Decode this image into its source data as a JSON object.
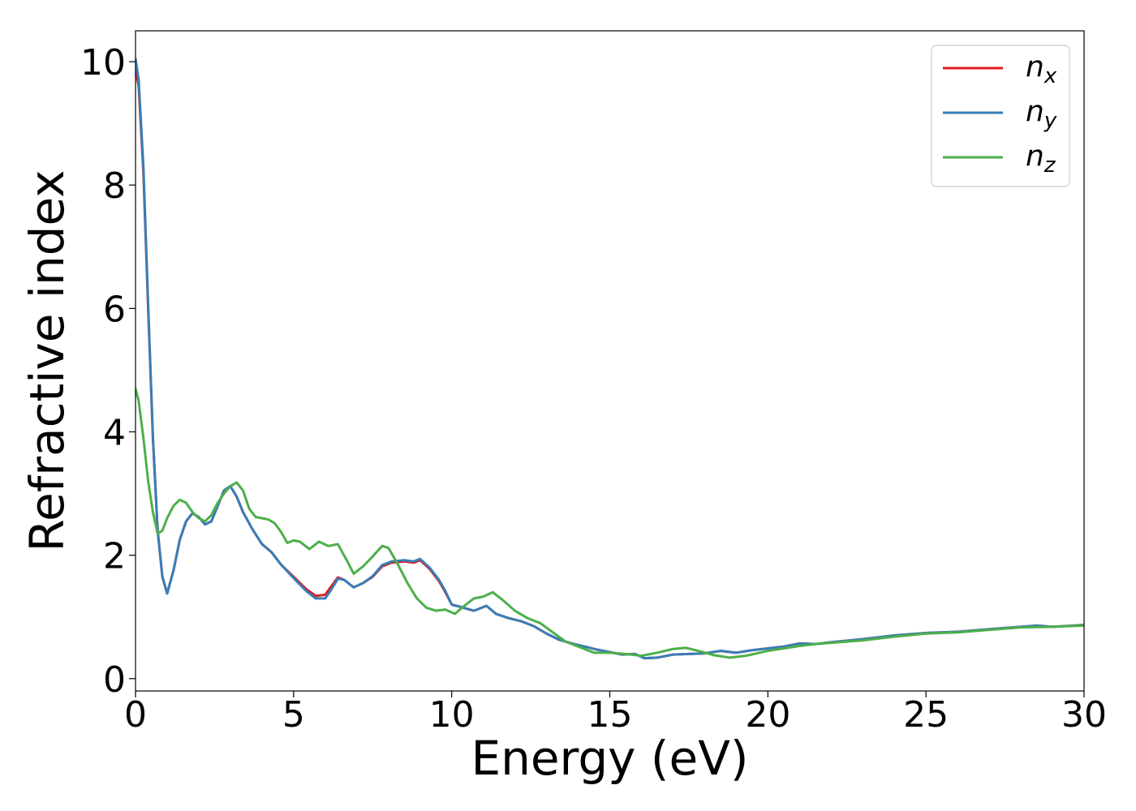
{
  "chart_data": {
    "type": "line",
    "title": "",
    "xlabel": "Energy (eV)",
    "ylabel": "Refractive index",
    "xlim": [
      0,
      30
    ],
    "ylim": [
      -0.2,
      10.5
    ],
    "x_ticks": [
      "0",
      "5",
      "10",
      "15",
      "20",
      "25",
      "30"
    ],
    "y_ticks": [
      "0",
      "2",
      "4",
      "6",
      "8",
      "10"
    ],
    "grid": false,
    "legend_position": "top-right",
    "series": [
      {
        "name": "n",
        "subscript": "x",
        "color": "#e41a1c",
        "points": [
          [
            0,
            9.9
          ],
          [
            0.1,
            9.6
          ],
          [
            0.25,
            8.2
          ],
          [
            0.4,
            6.0
          ],
          [
            0.55,
            3.9
          ],
          [
            0.7,
            2.4
          ],
          [
            0.85,
            1.65
          ],
          [
            1.0,
            1.38
          ],
          [
            1.2,
            1.75
          ],
          [
            1.4,
            2.25
          ],
          [
            1.6,
            2.55
          ],
          [
            1.8,
            2.68
          ],
          [
            2.0,
            2.62
          ],
          [
            2.2,
            2.5
          ],
          [
            2.4,
            2.55
          ],
          [
            2.6,
            2.8
          ],
          [
            2.8,
            3.05
          ],
          [
            3.0,
            3.12
          ],
          [
            3.2,
            2.95
          ],
          [
            3.4,
            2.7
          ],
          [
            3.7,
            2.42
          ],
          [
            4.0,
            2.18
          ],
          [
            4.3,
            2.05
          ],
          [
            4.6,
            1.85
          ],
          [
            5.0,
            1.65
          ],
          [
            5.4,
            1.45
          ],
          [
            5.7,
            1.34
          ],
          [
            6.0,
            1.36
          ],
          [
            6.2,
            1.5
          ],
          [
            6.4,
            1.64
          ],
          [
            6.6,
            1.6
          ],
          [
            6.9,
            1.48
          ],
          [
            7.2,
            1.55
          ],
          [
            7.5,
            1.65
          ],
          [
            7.8,
            1.82
          ],
          [
            8.1,
            1.88
          ],
          [
            8.5,
            1.9
          ],
          [
            8.8,
            1.88
          ],
          [
            9.0,
            1.92
          ],
          [
            9.3,
            1.78
          ],
          [
            9.6,
            1.58
          ],
          [
            9.8,
            1.4
          ],
          [
            10.0,
            1.2
          ],
          [
            10.3,
            1.16
          ],
          [
            10.7,
            1.1
          ],
          [
            11.1,
            1.18
          ],
          [
            11.4,
            1.05
          ],
          [
            11.8,
            0.98
          ],
          [
            12.2,
            0.93
          ],
          [
            12.6,
            0.85
          ],
          [
            13.0,
            0.73
          ],
          [
            13.4,
            0.63
          ],
          [
            13.8,
            0.57
          ],
          [
            14.2,
            0.52
          ],
          [
            14.6,
            0.47
          ],
          [
            15.0,
            0.43
          ],
          [
            15.4,
            0.39
          ],
          [
            15.8,
            0.4
          ],
          [
            16.1,
            0.33
          ],
          [
            16.5,
            0.34
          ],
          [
            17.0,
            0.39
          ],
          [
            17.5,
            0.4
          ],
          [
            18.0,
            0.41
          ],
          [
            18.5,
            0.45
          ],
          [
            19.0,
            0.42
          ],
          [
            19.5,
            0.46
          ],
          [
            20.0,
            0.49
          ],
          [
            20.5,
            0.52
          ],
          [
            21.0,
            0.57
          ],
          [
            21.5,
            0.56
          ],
          [
            22.0,
            0.59
          ],
          [
            23.0,
            0.64
          ],
          [
            24.0,
            0.7
          ],
          [
            25.0,
            0.74
          ],
          [
            26.0,
            0.76
          ],
          [
            27.0,
            0.8
          ],
          [
            28.0,
            0.84
          ],
          [
            28.5,
            0.86
          ],
          [
            29.0,
            0.84
          ],
          [
            30.0,
            0.87
          ]
        ]
      },
      {
        "name": "n",
        "subscript": "y",
        "color": "#377eb8",
        "points": [
          [
            0,
            10.05
          ],
          [
            0.1,
            9.7
          ],
          [
            0.25,
            8.3
          ],
          [
            0.4,
            6.05
          ],
          [
            0.55,
            3.92
          ],
          [
            0.7,
            2.4
          ],
          [
            0.85,
            1.65
          ],
          [
            1.0,
            1.38
          ],
          [
            1.2,
            1.75
          ],
          [
            1.4,
            2.25
          ],
          [
            1.6,
            2.55
          ],
          [
            1.8,
            2.68
          ],
          [
            2.0,
            2.62
          ],
          [
            2.2,
            2.5
          ],
          [
            2.4,
            2.55
          ],
          [
            2.6,
            2.8
          ],
          [
            2.8,
            3.05
          ],
          [
            3.0,
            3.12
          ],
          [
            3.2,
            2.95
          ],
          [
            3.4,
            2.7
          ],
          [
            3.7,
            2.42
          ],
          [
            4.0,
            2.18
          ],
          [
            4.3,
            2.05
          ],
          [
            4.6,
            1.85
          ],
          [
            5.0,
            1.63
          ],
          [
            5.4,
            1.42
          ],
          [
            5.7,
            1.3
          ],
          [
            6.0,
            1.3
          ],
          [
            6.2,
            1.45
          ],
          [
            6.4,
            1.62
          ],
          [
            6.6,
            1.6
          ],
          [
            6.9,
            1.48
          ],
          [
            7.2,
            1.55
          ],
          [
            7.5,
            1.66
          ],
          [
            7.8,
            1.84
          ],
          [
            8.1,
            1.9
          ],
          [
            8.5,
            1.92
          ],
          [
            8.8,
            1.9
          ],
          [
            9.0,
            1.94
          ],
          [
            9.3,
            1.8
          ],
          [
            9.6,
            1.6
          ],
          [
            9.8,
            1.42
          ],
          [
            10.0,
            1.2
          ],
          [
            10.3,
            1.16
          ],
          [
            10.7,
            1.1
          ],
          [
            11.1,
            1.18
          ],
          [
            11.4,
            1.05
          ],
          [
            11.8,
            0.98
          ],
          [
            12.2,
            0.93
          ],
          [
            12.6,
            0.85
          ],
          [
            13.0,
            0.73
          ],
          [
            13.4,
            0.63
          ],
          [
            13.8,
            0.57
          ],
          [
            14.2,
            0.52
          ],
          [
            14.6,
            0.47
          ],
          [
            15.0,
            0.43
          ],
          [
            15.4,
            0.39
          ],
          [
            15.8,
            0.4
          ],
          [
            16.1,
            0.33
          ],
          [
            16.5,
            0.34
          ],
          [
            17.0,
            0.39
          ],
          [
            17.5,
            0.4
          ],
          [
            18.0,
            0.41
          ],
          [
            18.5,
            0.45
          ],
          [
            19.0,
            0.42
          ],
          [
            19.5,
            0.46
          ],
          [
            20.0,
            0.49
          ],
          [
            20.5,
            0.52
          ],
          [
            21.0,
            0.57
          ],
          [
            21.5,
            0.56
          ],
          [
            22.0,
            0.59
          ],
          [
            23.0,
            0.64
          ],
          [
            24.0,
            0.7
          ],
          [
            25.0,
            0.74
          ],
          [
            26.0,
            0.76
          ],
          [
            27.0,
            0.8
          ],
          [
            28.0,
            0.84
          ],
          [
            28.5,
            0.86
          ],
          [
            29.0,
            0.84
          ],
          [
            30.0,
            0.87
          ]
        ]
      },
      {
        "name": "n",
        "subscript": "z",
        "color": "#4daf4a",
        "points": [
          [
            0,
            4.7
          ],
          [
            0.1,
            4.5
          ],
          [
            0.25,
            3.9
          ],
          [
            0.4,
            3.2
          ],
          [
            0.55,
            2.7
          ],
          [
            0.7,
            2.35
          ],
          [
            0.85,
            2.4
          ],
          [
            1.0,
            2.6
          ],
          [
            1.2,
            2.8
          ],
          [
            1.4,
            2.9
          ],
          [
            1.6,
            2.85
          ],
          [
            1.8,
            2.7
          ],
          [
            2.0,
            2.6
          ],
          [
            2.2,
            2.55
          ],
          [
            2.4,
            2.65
          ],
          [
            2.6,
            2.85
          ],
          [
            2.8,
            3.0
          ],
          [
            3.0,
            3.12
          ],
          [
            3.2,
            3.18
          ],
          [
            3.4,
            3.05
          ],
          [
            3.6,
            2.75
          ],
          [
            3.8,
            2.62
          ],
          [
            4.0,
            2.6
          ],
          [
            4.2,
            2.58
          ],
          [
            4.4,
            2.52
          ],
          [
            4.6,
            2.38
          ],
          [
            4.8,
            2.2
          ],
          [
            5.0,
            2.24
          ],
          [
            5.2,
            2.22
          ],
          [
            5.5,
            2.1
          ],
          [
            5.8,
            2.22
          ],
          [
            6.1,
            2.15
          ],
          [
            6.4,
            2.18
          ],
          [
            6.7,
            1.9
          ],
          [
            6.9,
            1.7
          ],
          [
            7.2,
            1.82
          ],
          [
            7.5,
            1.98
          ],
          [
            7.8,
            2.15
          ],
          [
            8.0,
            2.12
          ],
          [
            8.3,
            1.85
          ],
          [
            8.6,
            1.55
          ],
          [
            8.9,
            1.3
          ],
          [
            9.2,
            1.15
          ],
          [
            9.5,
            1.1
          ],
          [
            9.8,
            1.12
          ],
          [
            10.1,
            1.05
          ],
          [
            10.4,
            1.18
          ],
          [
            10.7,
            1.3
          ],
          [
            11.0,
            1.33
          ],
          [
            11.3,
            1.4
          ],
          [
            11.6,
            1.28
          ],
          [
            12.0,
            1.1
          ],
          [
            12.4,
            0.98
          ],
          [
            12.8,
            0.9
          ],
          [
            13.2,
            0.75
          ],
          [
            13.6,
            0.6
          ],
          [
            14.0,
            0.52
          ],
          [
            14.5,
            0.42
          ],
          [
            15.0,
            0.42
          ],
          [
            15.5,
            0.4
          ],
          [
            16.0,
            0.37
          ],
          [
            16.5,
            0.42
          ],
          [
            17.0,
            0.48
          ],
          [
            17.4,
            0.5
          ],
          [
            17.8,
            0.45
          ],
          [
            18.3,
            0.38
          ],
          [
            18.8,
            0.34
          ],
          [
            19.3,
            0.37
          ],
          [
            20.0,
            0.45
          ],
          [
            20.5,
            0.49
          ],
          [
            21.0,
            0.53
          ],
          [
            21.5,
            0.56
          ],
          [
            22.0,
            0.58
          ],
          [
            23.0,
            0.62
          ],
          [
            24.0,
            0.68
          ],
          [
            25.0,
            0.73
          ],
          [
            26.0,
            0.75
          ],
          [
            27.0,
            0.79
          ],
          [
            28.0,
            0.83
          ],
          [
            29.0,
            0.84
          ],
          [
            30.0,
            0.86
          ]
        ]
      }
    ]
  }
}
